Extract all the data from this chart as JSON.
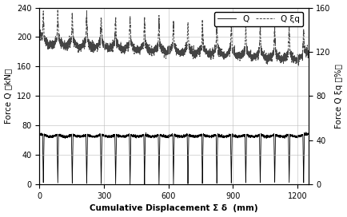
{
  "title": "",
  "xlabel": "Cumulative Displacement Σ δ  (mm)",
  "ylabel_left": "Force Q （kN）",
  "ylabel_right": "Force Q ξq （%）",
  "xlim": [
    0,
    1250
  ],
  "ylim_left": [
    0,
    240
  ],
  "ylim_right": [
    0,
    160
  ],
  "yticks_left": [
    0,
    40,
    80,
    120,
    160,
    200,
    240
  ],
  "yticks_right": [
    0,
    40,
    80,
    120,
    160
  ],
  "xticks": [
    0,
    300,
    600,
    900,
    1200
  ],
  "legend_Q": "Q",
  "legend_Xiq": "Q ξq",
  "bg_color": "#ffffff",
  "Q_color": "#000000",
  "Xiq_color": "#444444",
  "num_cycles": 19,
  "Q_base": 68.0,
  "Xiq_base_pct": 135.0
}
